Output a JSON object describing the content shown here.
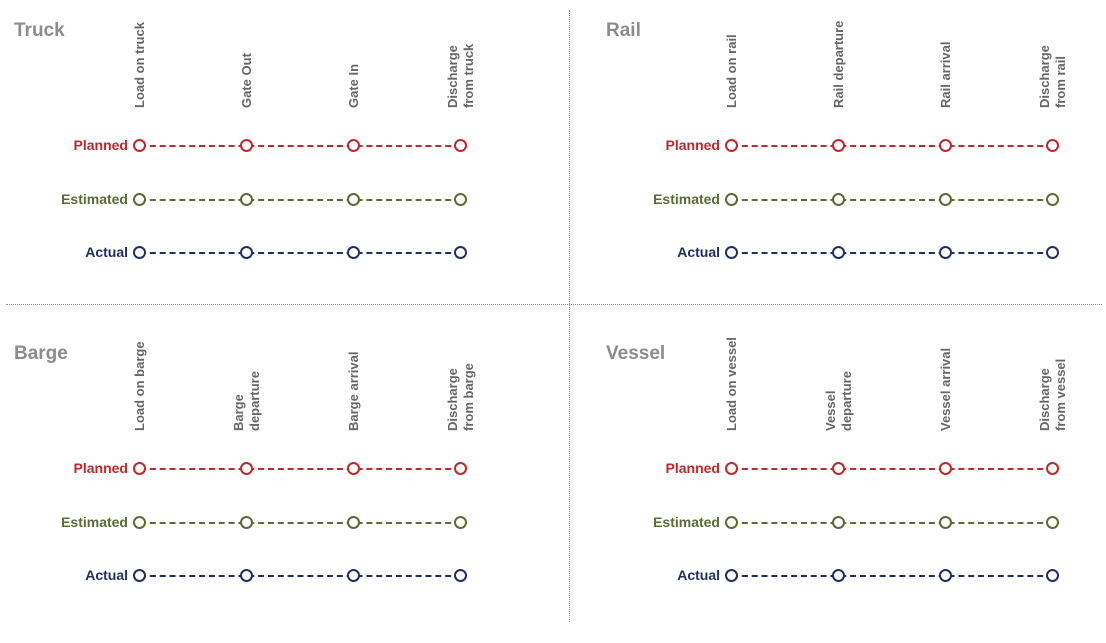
{
  "rows": [
    {
      "key": "planned",
      "label": "Planned",
      "color": "#c0282e"
    },
    {
      "key": "estimated",
      "label": "Estimated",
      "color": "#5a6b34"
    },
    {
      "key": "actual",
      "label": "Actual",
      "color": "#1f2f66"
    }
  ],
  "panels": [
    {
      "id": "truck",
      "title": "Truck",
      "milestones": [
        "Load on truck",
        "Gate Out",
        "Gate In",
        "Discharge\nfrom truck"
      ]
    },
    {
      "id": "rail",
      "title": "Rail",
      "milestones": [
        "Load on rail",
        "Rail departure",
        "Rail arrival",
        "Discharge\nfrom rail"
      ]
    },
    {
      "id": "barge",
      "title": "Barge",
      "milestones": [
        "Load on barge",
        "Barge\ndeparture",
        "Barge arrival",
        "Discharge\nfrom barge"
      ]
    },
    {
      "id": "vessel",
      "title": "Vessel",
      "milestones": [
        "Load on vessel",
        "Vessel\ndeparture",
        "Vessel arrival",
        "Discharge\nfrom vessel"
      ]
    }
  ]
}
